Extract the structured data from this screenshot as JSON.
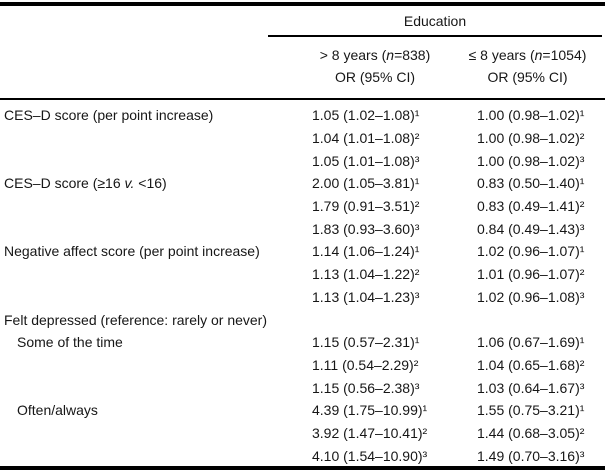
{
  "colors": {
    "background": "#ffffff",
    "text": "#161616",
    "rule": "#000000"
  },
  "header": {
    "group_label": "Education",
    "columns": [
      {
        "title_parts": [
          {
            "t": "> 8 years ("
          },
          {
            "t": "n",
            "i": true
          },
          {
            "t": "=838)"
          }
        ],
        "subtitle": "OR (95% CI)"
      },
      {
        "title_parts": [
          {
            "t": "≤ 8 years ("
          },
          {
            "t": "n",
            "i": true
          },
          {
            "t": "=1054)"
          }
        ],
        "subtitle": "OR (95% CI)"
      }
    ]
  },
  "body": {
    "blocks": [
      {
        "label_parts": [
          {
            "t": "CES–D score (per point increase)"
          }
        ],
        "indent": false,
        "col1": [
          "1.05 (1.02–1.08)¹",
          "1.04 (1.01–1.08)²",
          "1.05 (1.01–1.08)³"
        ],
        "col2": [
          "1.00 (0.98–1.02)¹",
          "1.00 (0.98–1.02)²",
          "1.00 (0.98–1.02)³"
        ]
      },
      {
        "label_parts": [
          {
            "t": "CES–D score (≥16 "
          },
          {
            "t": "v.",
            "i": true
          },
          {
            "t": " <16)"
          }
        ],
        "indent": false,
        "col1": [
          "2.00 (1.05–3.81)¹",
          "1.79 (0.91–3.51)²",
          "1.83 (0.93–3.60)³"
        ],
        "col2": [
          "0.83 (0.50–1.40)¹",
          "0.83 (0.49–1.41)²",
          "0.84 (0.49–1.43)³"
        ]
      },
      {
        "label_parts": [
          {
            "t": "Negative affect score (per point increase)"
          }
        ],
        "indent": false,
        "col1": [
          "1.14 (1.06–1.24)¹",
          "1.13 (1.04–1.22)²",
          "1.13 (1.04–1.23)³"
        ],
        "col2": [
          "1.02 (0.96–1.07)¹",
          "1.01 (0.96–1.07)²",
          "1.02 (0.96–1.08)³"
        ]
      },
      {
        "label_parts": [
          {
            "t": "Felt depressed (reference: rarely or never)"
          }
        ],
        "indent": false,
        "col1": [],
        "col2": []
      },
      {
        "label_parts": [
          {
            "t": "Some of the time"
          }
        ],
        "indent": true,
        "col1": [
          "1.15 (0.57–2.31)¹",
          "1.11 (0.54–2.29)²",
          "1.15 (0.56–2.38)³"
        ],
        "col2": [
          "1.06 (0.67–1.69)¹",
          "1.04 (0.65–1.68)²",
          "1.03 (0.64–1.67)³"
        ]
      },
      {
        "label_parts": [
          {
            "t": "Often/always"
          }
        ],
        "indent": true,
        "col1": [
          "4.39 (1.75–10.99)¹",
          "3.92 (1.47–10.41)²",
          "4.10 (1.54–10.90)³"
        ],
        "col2": [
          "1.55 (0.75–3.21)¹",
          "1.44 (0.68–3.05)²",
          "1.49 (0.70–3.16)³"
        ]
      }
    ]
  }
}
